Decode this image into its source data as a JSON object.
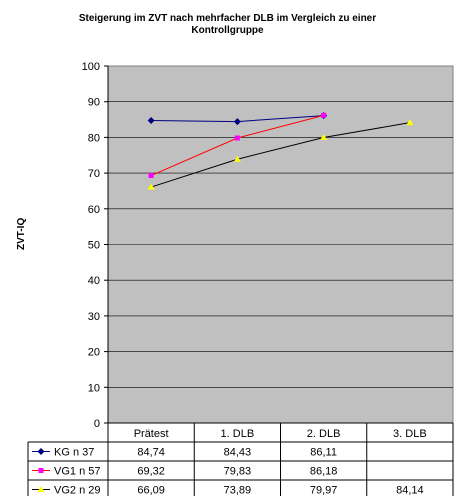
{
  "chart_data": {
    "type": "line",
    "title_lines": [
      "Steigerung im ZVT nach mehrfacher DLB im Vergleich zu einer",
      "Kontrollgruppe"
    ],
    "ylabel": "ZVT-IQ",
    "xlabel": "",
    "ylim": [
      0,
      100
    ],
    "yticks": [
      0,
      10,
      20,
      30,
      40,
      50,
      60,
      70,
      80,
      90,
      100
    ],
    "grid": true,
    "legend": "data-table",
    "categories": [
      "Prätest",
      "1. DLB",
      "2. DLB",
      "3. DLB"
    ],
    "series": [
      {
        "name": "KG n 37",
        "color": "#000080",
        "marker": "diamond",
        "values": [
          84.74,
          84.43,
          86.11,
          null
        ],
        "labels": [
          "84,74",
          "84,43",
          "86,11",
          ""
        ]
      },
      {
        "name": "VG1 n 57",
        "color": "#ff00ff",
        "line_color": "#ff0000",
        "marker": "square",
        "values": [
          69.32,
          79.83,
          86.18,
          null
        ],
        "labels": [
          "69,32",
          "79,83",
          "86,18",
          ""
        ]
      },
      {
        "name": "VG2 n 29",
        "color": "#ffff00",
        "line_color": "#000000",
        "marker": "triangle",
        "values": [
          66.09,
          73.89,
          79.97,
          84.14
        ],
        "labels": [
          "66,09",
          "73,89",
          "79,97",
          "84,14"
        ]
      }
    ]
  }
}
